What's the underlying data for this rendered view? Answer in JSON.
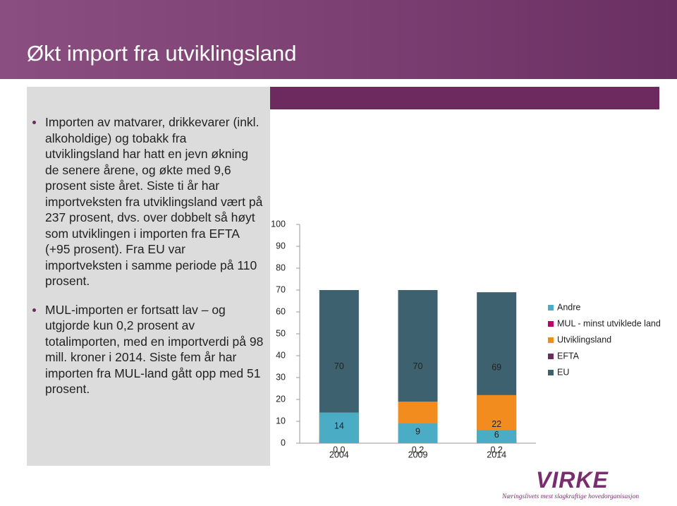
{
  "header": {
    "title": "Økt import fra utviklingsland"
  },
  "bullets": [
    "Importen av matvarer, drikkevarer (inkl. alkoholdige) og tobakk fra utviklingsland har hatt en jevn økning de senere årene, og økte med 9,6 prosent siste året. Siste ti år har importveksten fra utviklingsland vært på 237 prosent, dvs. over dobbelt så høyt som utviklingen i importen fra EFTA (+95 prosent). Fra EU var importveksten i samme periode på 110 prosent.",
    "MUL-importen er fortsatt lav – og utgjorde kun 0,2 prosent av totalimporten, med en importverdi på 98 mill. kroner i 2014. Siste fem år har importen fra MUL-land gått opp med 51 prosent."
  ],
  "footer": {
    "logo": "VIRKE",
    "tagline": "Næringslivets mest slagkraftige hovedorganisasjon"
  },
  "chart_data": {
    "type": "stacked_bar",
    "categories": [
      "2004",
      "2009",
      "2014"
    ],
    "series": [
      {
        "name": "EU",
        "color": "#3e6170",
        "values": [
          70,
          70,
          69
        ]
      },
      {
        "name": "EFTA",
        "color": "#6b2c5e",
        "values": [
          2,
          2,
          2
        ]
      },
      {
        "name": "Utviklingsland",
        "color": "#f28c1e",
        "values": [
          14,
          19,
          22
        ]
      },
      {
        "name": "MUL - minst utviklede land",
        "color": "#c0006a",
        "values": [
          0.0,
          0.2,
          0.2
        ],
        "value_labels": [
          "0,0",
          "0,2",
          "0,2"
        ]
      },
      {
        "name": "Andre",
        "color": "#4bacc6",
        "values": [
          14,
          9,
          6
        ]
      }
    ],
    "ylim": [
      0,
      100
    ],
    "yticks": [
      0,
      10,
      20,
      30,
      40,
      50,
      60,
      70,
      80,
      90,
      100
    ]
  }
}
